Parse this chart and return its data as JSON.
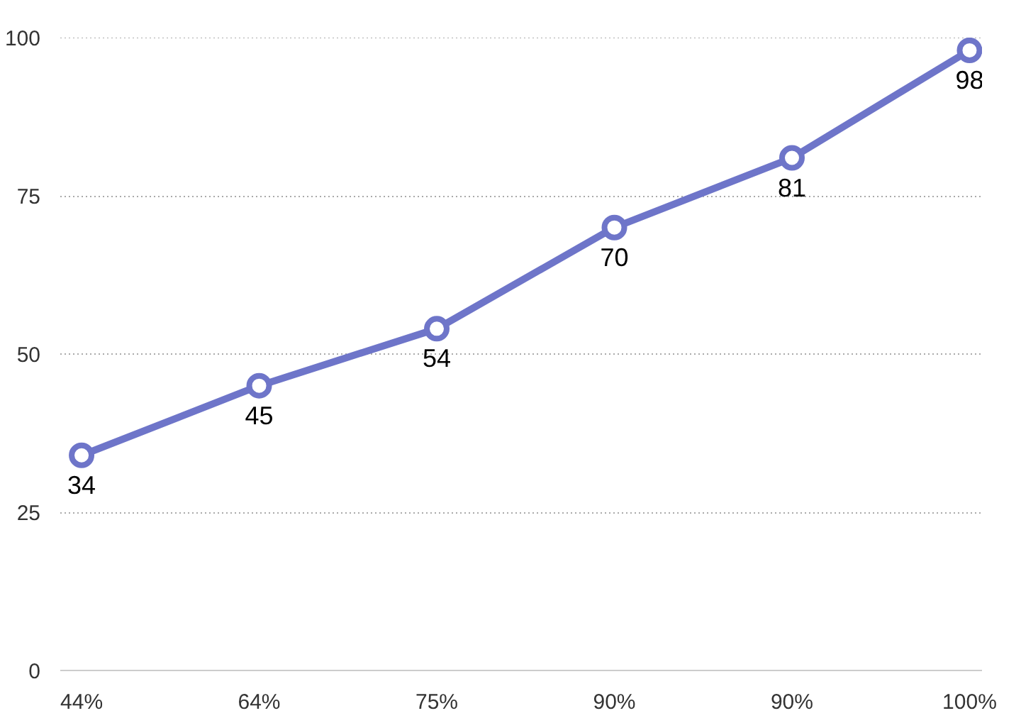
{
  "chart_data": {
    "type": "line",
    "categories": [
      "44%",
      "64%",
      "75%",
      "90%",
      "90%",
      "100%"
    ],
    "series": [
      {
        "color": "#6e75c9",
        "values": [
          34,
          45,
          54,
          70,
          81,
          98
        ]
      }
    ],
    "ylim": [
      0,
      100
    ],
    "yticks": [
      0,
      25,
      50,
      75,
      100
    ],
    "grid": "y",
    "marker": "circle",
    "line_style": "solid",
    "data_labels": true
  }
}
